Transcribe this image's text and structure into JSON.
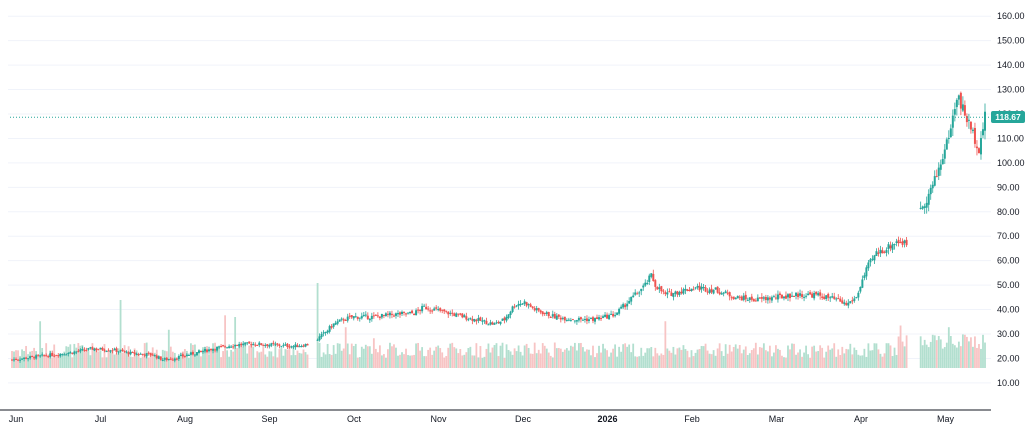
{
  "chart_data": {
    "type": "candlestick",
    "y_axis": {
      "position": "right",
      "range": [
        3,
        165
      ],
      "ticks": [
        "10.00",
        "20.00",
        "30.00",
        "40.00",
        "50.00",
        "60.00",
        "70.00",
        "80.00",
        "90.00",
        "100.00",
        "110.00",
        "120.00",
        "130.00",
        "140.00",
        "150.00",
        "160.00"
      ]
    },
    "x_axis": {
      "labels": [
        "Jun",
        "Jul",
        "Aug",
        "Sep",
        "Oct",
        "Nov",
        "Dec",
        "2026",
        "Feb",
        "Mar",
        "Apr",
        "May"
      ],
      "bold_labels": [
        "2026"
      ]
    },
    "last_price": 118.67,
    "last_price_label": "118.67",
    "colors": {
      "up": "#26a69a",
      "down": "#ef5350",
      "volume_up": "#b2dfcf",
      "volume_down": "#f7c4c4",
      "price_line": "#26a69a",
      "background": "#ffffff",
      "grid": "#f0f3fa"
    },
    "volume_series": {
      "shown": true,
      "max_relative": 1.0
    },
    "price_path": [
      [
        0,
        19.5
      ],
      [
        10,
        20.5
      ],
      [
        20,
        21.5
      ],
      [
        30,
        22.5
      ],
      [
        40,
        24
      ],
      [
        50,
        23.5
      ],
      [
        60,
        22
      ],
      [
        70,
        21.5
      ],
      [
        75,
        19.5
      ],
      [
        80,
        20
      ],
      [
        90,
        22
      ],
      [
        100,
        24
      ],
      [
        110,
        25.5
      ],
      [
        120,
        26
      ],
      [
        130,
        25.5
      ],
      [
        140,
        25
      ],
      [
        150,
        26
      ],
      [
        152,
        28
      ],
      [
        155,
        30
      ],
      [
        160,
        34
      ],
      [
        165,
        36
      ],
      [
        170,
        37
      ],
      [
        180,
        37
      ],
      [
        190,
        38
      ],
      [
        200,
        38.5
      ],
      [
        205,
        41
      ],
      [
        210,
        40
      ],
      [
        220,
        38
      ],
      [
        230,
        36
      ],
      [
        240,
        34
      ],
      [
        245,
        36
      ],
      [
        250,
        42
      ],
      [
        255,
        43
      ],
      [
        260,
        40
      ],
      [
        270,
        37
      ],
      [
        280,
        36
      ],
      [
        290,
        36
      ],
      [
        300,
        38
      ],
      [
        305,
        42
      ],
      [
        310,
        46
      ],
      [
        315,
        50
      ],
      [
        318,
        54
      ],
      [
        320,
        50
      ],
      [
        325,
        46
      ],
      [
        330,
        47
      ],
      [
        340,
        49
      ],
      [
        350,
        48
      ],
      [
        360,
        45
      ],
      [
        370,
        44
      ],
      [
        380,
        45
      ],
      [
        390,
        46
      ],
      [
        400,
        46
      ],
      [
        410,
        44
      ],
      [
        415,
        42
      ],
      [
        420,
        45
      ],
      [
        423,
        52
      ],
      [
        426,
        58
      ],
      [
        430,
        63
      ],
      [
        435,
        65
      ],
      [
        440,
        68
      ],
      [
        445,
        67
      ],
      [
        447,
        66
      ],
      [
        450,
        80
      ],
      [
        455,
        85
      ],
      [
        460,
        95
      ],
      [
        465,
        108
      ],
      [
        467,
        115
      ],
      [
        469,
        122
      ],
      [
        470,
        128
      ],
      [
        472,
        124
      ],
      [
        475,
        118
      ],
      [
        478,
        112
      ],
      [
        481,
        106
      ],
      [
        484,
        118.67
      ]
    ],
    "volume_spikes": [
      [
        14,
        0.55
      ],
      [
        54,
        0.8
      ],
      [
        78,
        0.45
      ],
      [
        106,
        0.62
      ],
      [
        111,
        0.6
      ],
      [
        152,
        1.0
      ],
      [
        166,
        0.48
      ],
      [
        180,
        0.35
      ],
      [
        270,
        0.3
      ],
      [
        325,
        0.55
      ],
      [
        442,
        0.5
      ],
      [
        466,
        0.48
      ]
    ],
    "price_gaps": [
      [
        147,
        152
      ],
      [
        445,
        452
      ]
    ]
  }
}
